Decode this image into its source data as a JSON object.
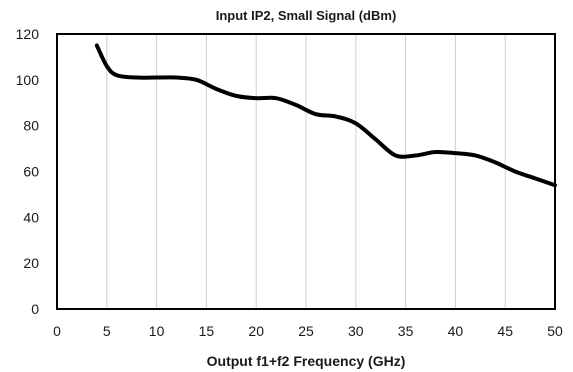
{
  "chart_data": {
    "type": "line",
    "title": "Input IP2, Small Signal (dBm)",
    "xlabel": "Output f1+f2 Frequency (GHz)",
    "ylabel": "",
    "xlim": [
      0,
      50
    ],
    "ylim": [
      0,
      120
    ],
    "x_ticks": [
      "0",
      "5",
      "10",
      "15",
      "20",
      "25",
      "30",
      "35",
      "40",
      "45",
      "50"
    ],
    "y_ticks": [
      "0",
      "20",
      "40",
      "60",
      "80",
      "100",
      "120"
    ],
    "grid": "vertical",
    "series": [
      {
        "x": [
          4,
          5,
          6,
          8,
          10,
          12,
          14,
          16,
          18,
          20,
          22,
          24,
          26,
          28,
          30,
          32,
          34,
          36,
          38,
          40,
          42,
          44,
          46,
          48,
          50
        ],
        "y": [
          115,
          106,
          102,
          101,
          101,
          101,
          100,
          96,
          93,
          92,
          92,
          89,
          85,
          84,
          81,
          74,
          67,
          67,
          68.5,
          68,
          67,
          64,
          60,
          57,
          54
        ],
        "color": "#000000"
      }
    ]
  }
}
